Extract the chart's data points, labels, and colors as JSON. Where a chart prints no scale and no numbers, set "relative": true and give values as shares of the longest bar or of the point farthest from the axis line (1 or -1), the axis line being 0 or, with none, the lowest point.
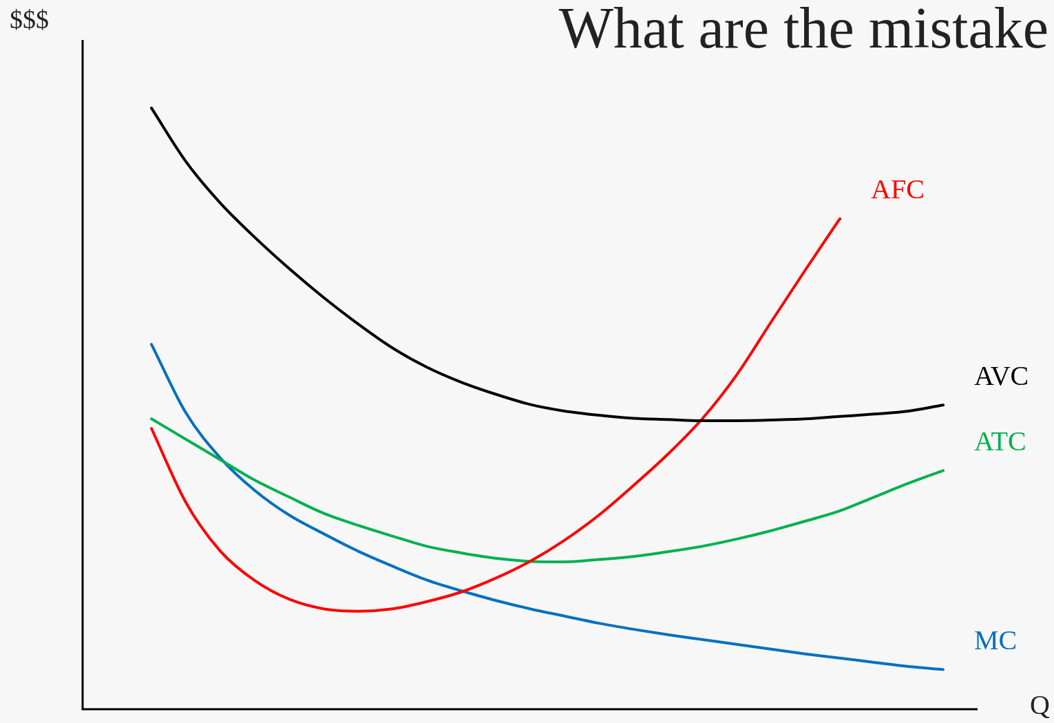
{
  "chart_data": {
    "type": "line",
    "title": "What are the mistake",
    "xlabel": "Q",
    "ylabel": "$$$",
    "relative": true,
    "legend": false,
    "marker": "none",
    "categories": [
      null,
      null,
      null,
      null,
      null,
      null,
      null,
      null,
      null,
      null,
      null,
      null,
      null,
      null,
      null,
      null,
      null,
      null,
      null,
      null,
      null,
      null,
      null,
      null,
      null,
      null,
      null
    ],
    "series": [
      {
        "name": "AVC",
        "color": "#000000",
        "values": [
          null,
          null,
          1,
          0.911,
          0.842,
          0.785,
          0.733,
          0.685,
          0.641,
          0.601,
          0.569,
          0.544,
          0.524,
          0.507,
          0.496,
          0.489,
          0.484,
          0.482,
          0.48,
          0.48,
          0.481,
          0.483,
          0.487,
          0.491,
          0.496,
          0.506,
          null
        ]
      },
      {
        "name": "AFC",
        "color": "#ff0000",
        "values": [
          null,
          null,
          0.467,
          0.344,
          0.263,
          0.214,
          0.183,
          0.167,
          0.163,
          0.167,
          0.179,
          0.195,
          0.218,
          0.246,
          0.281,
          0.323,
          0.372,
          0.424,
          0.483,
          0.556,
          0.644,
          0.731,
          0.816,
          null,
          null,
          null,
          null
        ]
      },
      {
        "name": "ATC",
        "color": "#00b050",
        "values": [
          null,
          null,
          0.483,
          0.449,
          0.415,
          0.381,
          0.353,
          0.326,
          0.306,
          0.288,
          0.271,
          0.26,
          0.251,
          0.246,
          0.245,
          0.249,
          0.254,
          0.262,
          0.271,
          0.283,
          0.297,
          0.313,
          0.33,
          0.353,
          0.376,
          0.397,
          null
        ]
      },
      {
        "name": "MC",
        "color": "#0070c0",
        "values": [
          null,
          null,
          0.607,
          0.493,
          0.418,
          0.364,
          0.323,
          0.292,
          0.263,
          0.238,
          0.215,
          0.197,
          0.181,
          0.167,
          0.155,
          0.143,
          0.133,
          0.124,
          0.116,
          0.108,
          0.1,
          0.092,
          0.085,
          0.078,
          0.071,
          0.066,
          null
        ]
      }
    ]
  }
}
